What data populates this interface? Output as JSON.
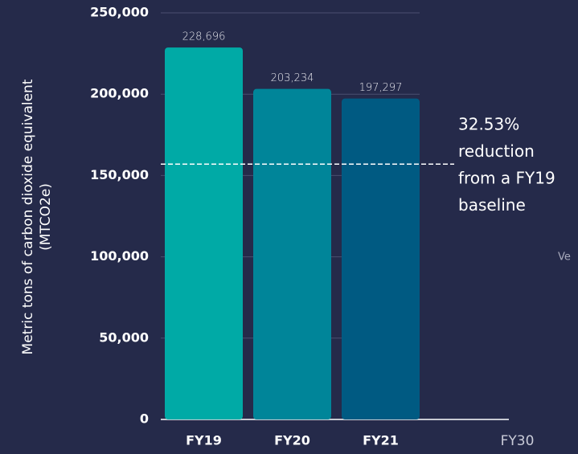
{
  "chart_data": {
    "type": "bar",
    "y_label": [
      "Metric tons of carbon dioxide equivalent",
      "(MTCO2e)"
    ],
    "categories": [
      "FY19",
      "FY20",
      "FY21",
      "FY30"
    ],
    "category_emphasis": [
      true,
      true,
      true,
      false
    ],
    "values": [
      228696,
      203234,
      197297,
      null
    ],
    "value_labels": [
      "228,696",
      "203,234",
      "197,297",
      null
    ],
    "colors": [
      "#00aaa6",
      "#008599",
      "#005a82",
      null
    ],
    "ylim": [
      0,
      250000
    ],
    "yticks": [
      0,
      {
        "value": 50000,
        "label": "50,000"
      },
      {
        "value": 100000,
        "label": "100,000"
      },
      {
        "value": 150000,
        "label": "150,000"
      },
      {
        "value": 200000,
        "label": "200,000"
      },
      {
        "value": 250000,
        "label": "250,000"
      }
    ],
    "grid": true,
    "reference_line": {
      "value": 157000,
      "style": "dashed"
    },
    "annotations": [
      {
        "lines": [
          "32.53%",
          "reduction",
          "from a FY19",
          "baseline"
        ]
      },
      {
        "text": "Ve"
      }
    ]
  }
}
